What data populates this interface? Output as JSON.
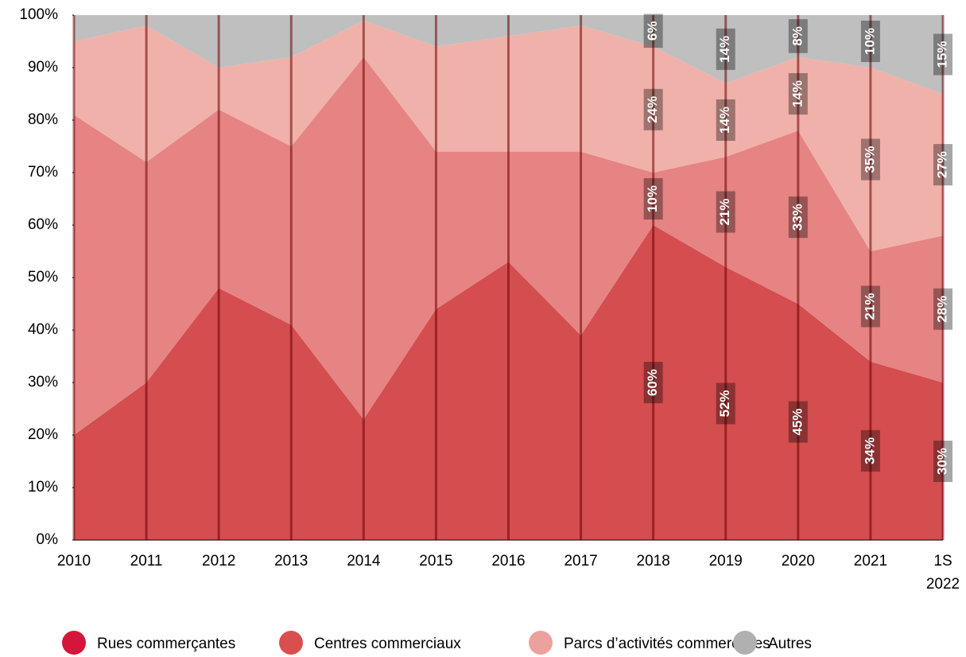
{
  "chart_data": {
    "type": "stacked_area",
    "categories": [
      "2010",
      "2011",
      "2012",
      "2013",
      "2014",
      "2015",
      "2016",
      "2017",
      "2018",
      "2019",
      "2020",
      "2021",
      "1S 2022"
    ],
    "series": [
      {
        "name": "Rues commerçantes",
        "color": "#d44d4f",
        "legend_color": "#d5163b",
        "values": [
          20,
          30,
          48,
          41,
          23,
          44,
          53,
          39,
          60,
          52,
          45,
          34,
          30
        ],
        "value_labels": [
          null,
          null,
          null,
          null,
          null,
          null,
          null,
          null,
          "60%",
          "52%",
          "45%",
          "34%",
          "30%"
        ]
      },
      {
        "name": "Centres commerciaux",
        "color": "#e68383",
        "legend_color": "#d94f4f",
        "values": [
          61,
          42,
          34,
          34,
          69,
          30,
          21,
          35,
          10,
          21,
          33,
          21,
          28
        ],
        "value_labels": [
          null,
          null,
          null,
          null,
          null,
          null,
          null,
          null,
          "10%",
          "21%",
          "33%",
          "21%",
          "28%"
        ]
      },
      {
        "name": "Parcs d’activités commerciales",
        "color": "#f0b1aa",
        "legend_color": "#eca29c",
        "values": [
          14,
          26,
          8,
          17,
          7,
          20,
          22,
          24,
          24,
          14,
          14,
          35,
          27
        ],
        "value_labels": [
          null,
          null,
          null,
          null,
          null,
          null,
          null,
          null,
          "24%",
          "14%",
          "14%",
          "35%",
          "27%"
        ]
      },
      {
        "name": "Autres",
        "color": "#bfbfbf",
        "legend_color": "#b0b0b0",
        "values": [
          5,
          2,
          10,
          8,
          1,
          6,
          4,
          2,
          6,
          14,
          8,
          10,
          15
        ],
        "value_labels": [
          null,
          null,
          null,
          null,
          null,
          null,
          null,
          null,
          "6%",
          "14%",
          "8%",
          "10%",
          "15%"
        ]
      }
    ],
    "ylim": [
      0,
      100
    ],
    "yticks": [
      {
        "value": 0,
        "label": "0%"
      },
      {
        "value": 10,
        "label": "10%"
      },
      {
        "value": 20,
        "label": "20%"
      },
      {
        "value": 30,
        "label": "30%"
      },
      {
        "value": 40,
        "label": "40%"
      },
      {
        "value": 50,
        "label": "50%"
      },
      {
        "value": 60,
        "label": "60%"
      },
      {
        "value": 70,
        "label": "70%"
      },
      {
        "value": 80,
        "label": "80%"
      },
      {
        "value": 90,
        "label": "90%"
      },
      {
        "value": 100,
        "label": "100%"
      }
    ],
    "legend": "bottom"
  }
}
